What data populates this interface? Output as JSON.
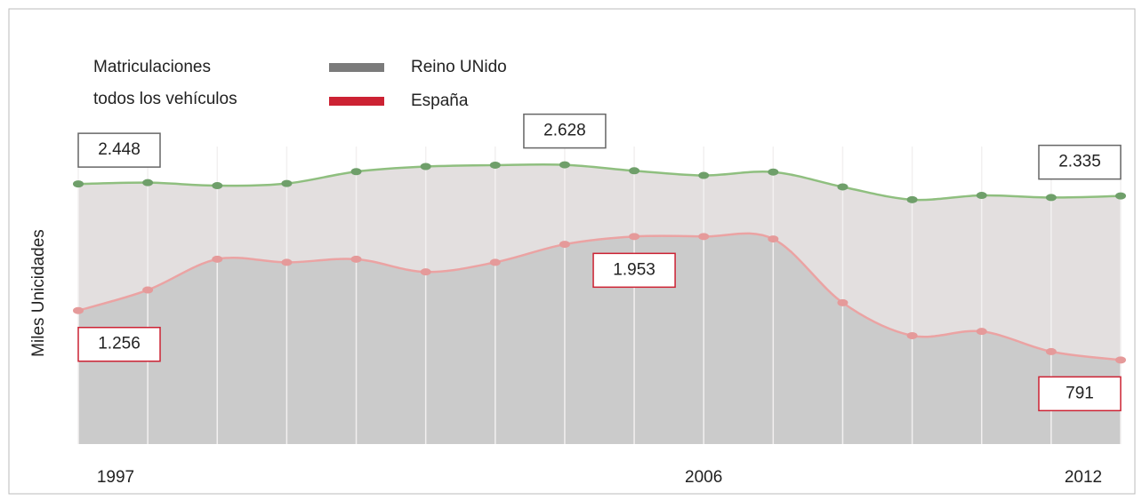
{
  "chart_data": {
    "type": "area",
    "title_lines": [
      "Matriculaciones",
      "todos los vehículos"
    ],
    "y_label": "Miles Unicidades",
    "categories": [
      "1997",
      null,
      null,
      null,
      null,
      null,
      null,
      null,
      null,
      "2006",
      null,
      null,
      null,
      null,
      null,
      "2012"
    ],
    "ylim": [
      0,
      2800
    ],
    "grid": true,
    "legend": "top",
    "series": [
      {
        "name": "Reino UNido",
        "color": "#7b7b7b",
        "line_color": "#8fbf7f",
        "marker_color": "#6f9f6a",
        "fill": "#e3dfdf",
        "values": [
          2448,
          2460,
          2432,
          2452,
          2564,
          2612,
          2625,
          2628,
          2572,
          2528,
          2560,
          2420,
          2300,
          2340,
          2320,
          2335
        ],
        "value_labels": [
          "2.448",
          null,
          null,
          null,
          null,
          null,
          null,
          "2.628",
          null,
          null,
          null,
          null,
          null,
          null,
          null,
          "2.335"
        ]
      },
      {
        "name": "España",
        "color": "#cc2233",
        "line_color": "#eba3a3",
        "marker_color": "#e59a9a",
        "fill": "#cbcbcb",
        "values": [
          1256,
          1450,
          1740,
          1710,
          1740,
          1620,
          1710,
          1880,
          1953,
          1953,
          1930,
          1330,
          1020,
          1060,
          870,
          791
        ],
        "value_labels": [
          "1.256",
          null,
          null,
          null,
          null,
          null,
          null,
          null,
          "1.953",
          null,
          null,
          null,
          null,
          null,
          null,
          "791"
        ]
      }
    ]
  }
}
